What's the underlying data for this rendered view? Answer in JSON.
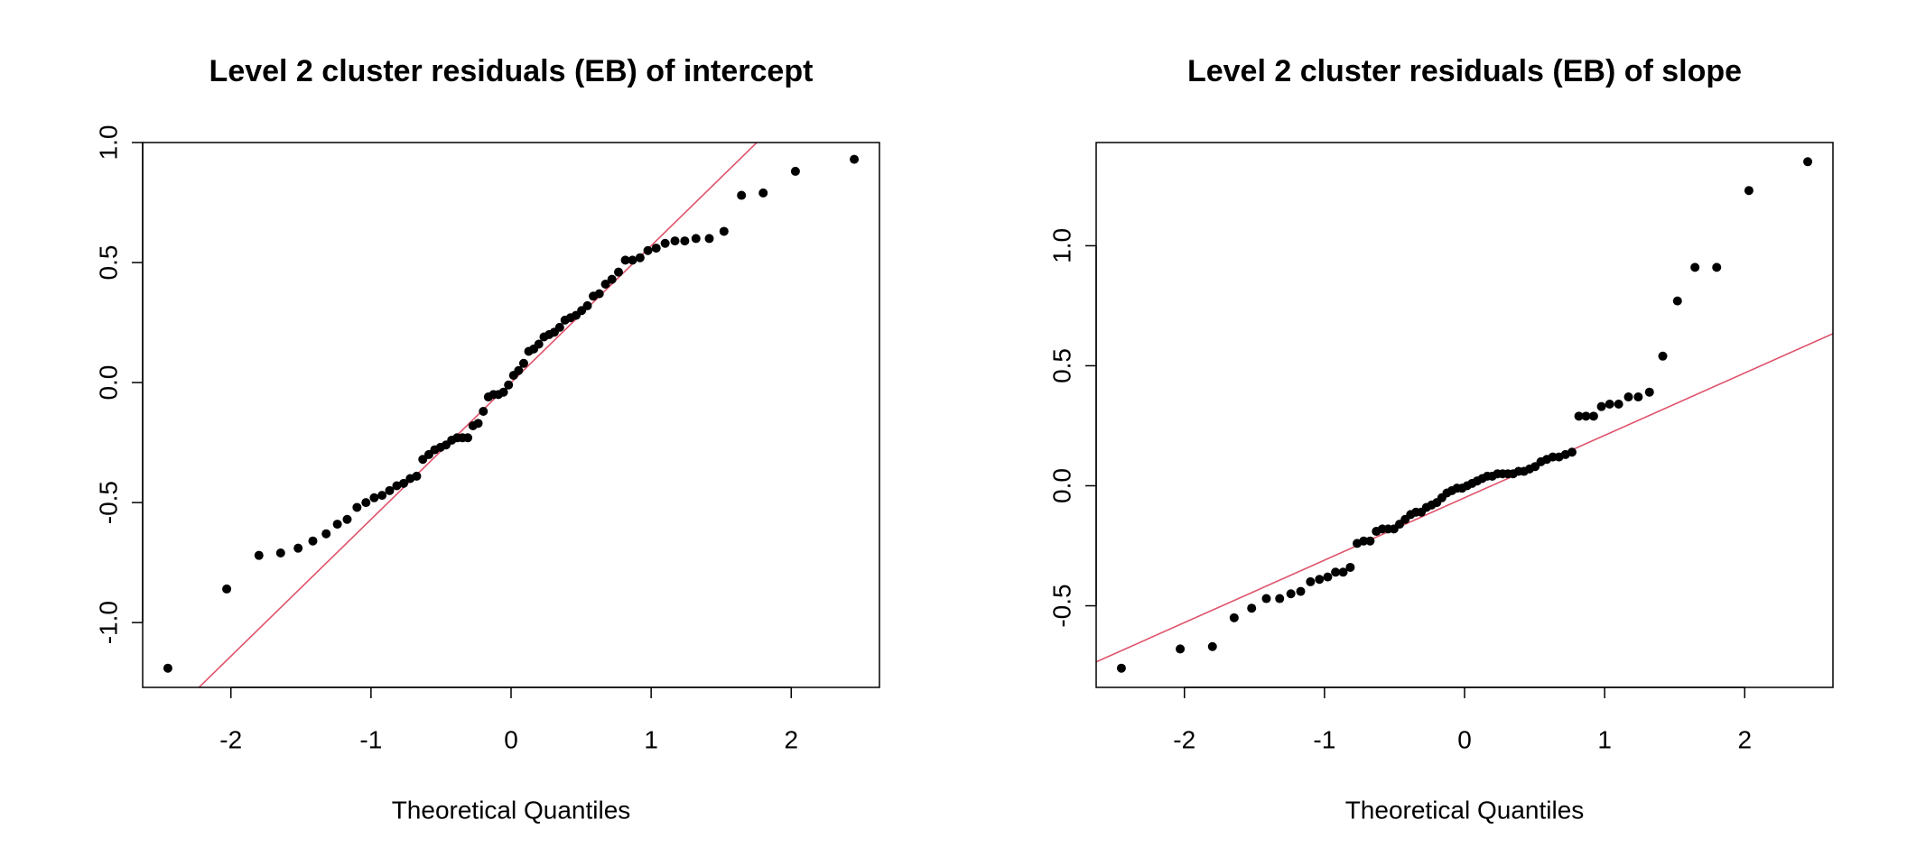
{
  "chart_data": [
    {
      "type": "scatter",
      "title": "Level 2 cluster  residuals (EB) of intercept",
      "x_label": "Theoretical Quantiles",
      "color": "#000000",
      "line_color": "#df536b",
      "x": [
        -2.45,
        -2.03,
        -1.8,
        -1.645,
        -1.52,
        -1.415,
        -1.32,
        -1.24,
        -1.17,
        -1.1,
        -1.036,
        -0.977,
        -0.921,
        -0.867,
        -0.816,
        -0.767,
        -0.72,
        -0.674,
        -0.63,
        -0.587,
        -0.545,
        -0.504,
        -0.464,
        -0.424,
        -0.385,
        -0.347,
        -0.309,
        -0.272,
        -0.235,
        -0.198,
        -0.162,
        -0.126,
        -0.09,
        -0.054,
        -0.018,
        0.018,
        0.054,
        0.09,
        0.126,
        0.162,
        0.198,
        0.235,
        0.272,
        0.309,
        0.347,
        0.385,
        0.424,
        0.464,
        0.504,
        0.545,
        0.587,
        0.63,
        0.674,
        0.72,
        0.767,
        0.816,
        0.867,
        0.921,
        0.977,
        1.036,
        1.1,
        1.17,
        1.24,
        1.32,
        1.415,
        1.52,
        1.645,
        1.8,
        2.03,
        2.45
      ],
      "values": [
        -1.19,
        -0.86,
        -0.72,
        -0.71,
        -0.69,
        -0.66,
        -0.63,
        -0.59,
        -0.57,
        -0.52,
        -0.5,
        -0.48,
        -0.47,
        -0.45,
        -0.43,
        -0.42,
        -0.4,
        -0.39,
        -0.32,
        -0.3,
        -0.28,
        -0.27,
        -0.26,
        -0.24,
        -0.23,
        -0.23,
        -0.23,
        -0.18,
        -0.17,
        -0.12,
        -0.06,
        -0.05,
        -0.05,
        -0.04,
        -0.01,
        0.03,
        0.05,
        0.08,
        0.13,
        0.14,
        0.16,
        0.19,
        0.2,
        0.21,
        0.23,
        0.26,
        0.27,
        0.28,
        0.3,
        0.32,
        0.36,
        0.37,
        0.41,
        0.43,
        0.46,
        0.51,
        0.51,
        0.52,
        0.55,
        0.56,
        0.58,
        0.59,
        0.59,
        0.6,
        0.6,
        0.63,
        0.78,
        0.79,
        0.88,
        0.93
      ],
      "qq_line": {
        "slope": 0.57,
        "intercept": 0.0
      },
      "xlim": [
        -2.63,
        2.63
      ],
      "ylim": [
        -1.27,
        1.0
      ],
      "xticks": [
        -2,
        -1,
        0,
        1,
        2
      ],
      "yticks": [
        {
          "value": -1,
          "label": "-1.0"
        },
        -0.5,
        {
          "value": 0,
          "label": "0.0"
        },
        0.5,
        {
          "value": 1,
          "label": "1.0"
        }
      ]
    },
    {
      "type": "scatter",
      "title": "Level 2 cluster  residuals (EB) of slope",
      "x_label": "Theoretical Quantiles",
      "color": "#000000",
      "line_color": "#df536b",
      "x": [
        -2.45,
        -2.03,
        -1.8,
        -1.645,
        -1.52,
        -1.415,
        -1.32,
        -1.24,
        -1.17,
        -1.1,
        -1.036,
        -0.977,
        -0.921,
        -0.867,
        -0.816,
        -0.767,
        -0.72,
        -0.674,
        -0.63,
        -0.587,
        -0.545,
        -0.504,
        -0.464,
        -0.424,
        -0.385,
        -0.347,
        -0.309,
        -0.272,
        -0.235,
        -0.198,
        -0.162,
        -0.126,
        -0.09,
        -0.054,
        -0.018,
        0.018,
        0.054,
        0.09,
        0.126,
        0.162,
        0.198,
        0.235,
        0.272,
        0.309,
        0.347,
        0.385,
        0.424,
        0.464,
        0.504,
        0.545,
        0.587,
        0.63,
        0.674,
        0.72,
        0.767,
        0.816,
        0.867,
        0.921,
        0.977,
        1.036,
        1.1,
        1.17,
        1.24,
        1.32,
        1.415,
        1.52,
        1.645,
        1.8,
        2.03,
        2.45
      ],
      "values": [
        -0.76,
        -0.68,
        -0.67,
        -0.55,
        -0.51,
        -0.47,
        -0.47,
        -0.45,
        -0.44,
        -0.4,
        -0.39,
        -0.38,
        -0.36,
        -0.36,
        -0.34,
        -0.24,
        -0.23,
        -0.23,
        -0.19,
        -0.18,
        -0.18,
        -0.18,
        -0.16,
        -0.14,
        -0.12,
        -0.11,
        -0.11,
        -0.09,
        -0.08,
        -0.07,
        -0.05,
        -0.03,
        -0.02,
        -0.01,
        -0.01,
        0.0,
        0.01,
        0.02,
        0.03,
        0.04,
        0.04,
        0.05,
        0.05,
        0.05,
        0.05,
        0.06,
        0.06,
        0.07,
        0.08,
        0.1,
        0.11,
        0.12,
        0.12,
        0.13,
        0.14,
        0.29,
        0.29,
        0.29,
        0.33,
        0.34,
        0.34,
        0.37,
        0.37,
        0.39,
        0.54,
        0.77,
        0.91,
        0.91,
        1.23,
        1.35
      ],
      "qq_line": {
        "slope": 0.26,
        "intercept": -0.05
      },
      "xlim": [
        -2.63,
        2.63
      ],
      "ylim": [
        -0.84,
        1.43
      ],
      "xticks": [
        -2,
        -1,
        0,
        1,
        2
      ],
      "yticks": [
        -0.5,
        {
          "value": 0,
          "label": "0.0"
        },
        0.5,
        {
          "value": 1,
          "label": "1.0"
        }
      ]
    }
  ]
}
